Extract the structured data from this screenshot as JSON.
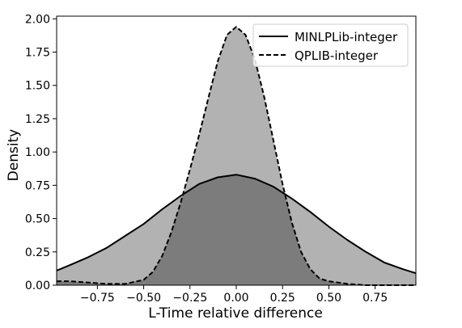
{
  "chart_data": {
    "type": "area",
    "title": "",
    "xlabel": "L-Time relative difference",
    "ylabel": "Density",
    "xlim": [
      -0.97,
      0.97
    ],
    "ylim": [
      0,
      2.02
    ],
    "x_ticks": [
      -0.75,
      -0.5,
      -0.25,
      0.0,
      0.25,
      0.5,
      0.75
    ],
    "x_tick_labels": [
      "−0.75",
      "−0.50",
      "−0.25",
      "0.00",
      "0.25",
      "0.50",
      "0.75"
    ],
    "y_ticks": [
      0.0,
      0.25,
      0.5,
      0.75,
      1.0,
      1.25,
      1.5,
      1.75,
      2.0
    ],
    "y_tick_labels": [
      "0.00",
      "0.25",
      "0.50",
      "0.75",
      "1.00",
      "1.25",
      "1.50",
      "1.75",
      "2.00"
    ],
    "grid": false,
    "legend_position": "top-right",
    "colors": {
      "fill": "#000000",
      "fill_opacity": 0.3,
      "line": "#000000"
    },
    "series": [
      {
        "name": "MINLPLib-integer",
        "line_style": "solid",
        "x": [
          -0.97,
          -0.9,
          -0.8,
          -0.7,
          -0.6,
          -0.5,
          -0.4,
          -0.3,
          -0.2,
          -0.1,
          0.0,
          0.1,
          0.2,
          0.3,
          0.4,
          0.5,
          0.6,
          0.7,
          0.8,
          0.9,
          0.97
        ],
        "y": [
          0.11,
          0.15,
          0.21,
          0.28,
          0.37,
          0.46,
          0.57,
          0.67,
          0.76,
          0.81,
          0.83,
          0.8,
          0.74,
          0.65,
          0.55,
          0.44,
          0.34,
          0.25,
          0.17,
          0.12,
          0.09
        ]
      },
      {
        "name": "QPLIB-integer",
        "line_style": "dashed",
        "x": [
          -0.97,
          -0.9,
          -0.8,
          -0.7,
          -0.6,
          -0.5,
          -0.45,
          -0.4,
          -0.35,
          -0.3,
          -0.25,
          -0.2,
          -0.15,
          -0.1,
          -0.05,
          0.0,
          0.05,
          0.1,
          0.15,
          0.2,
          0.25,
          0.3,
          0.35,
          0.4,
          0.45,
          0.5,
          0.6,
          0.7,
          0.8,
          0.9,
          0.97
        ],
        "y": [
          0.03,
          0.03,
          0.02,
          0.01,
          0.01,
          0.04,
          0.1,
          0.22,
          0.4,
          0.62,
          0.87,
          1.13,
          1.41,
          1.68,
          1.88,
          1.94,
          1.88,
          1.7,
          1.42,
          1.09,
          0.76,
          0.47,
          0.25,
          0.12,
          0.05,
          0.03,
          0.01,
          0.0,
          0.0,
          0.0,
          0.0
        ]
      }
    ]
  }
}
